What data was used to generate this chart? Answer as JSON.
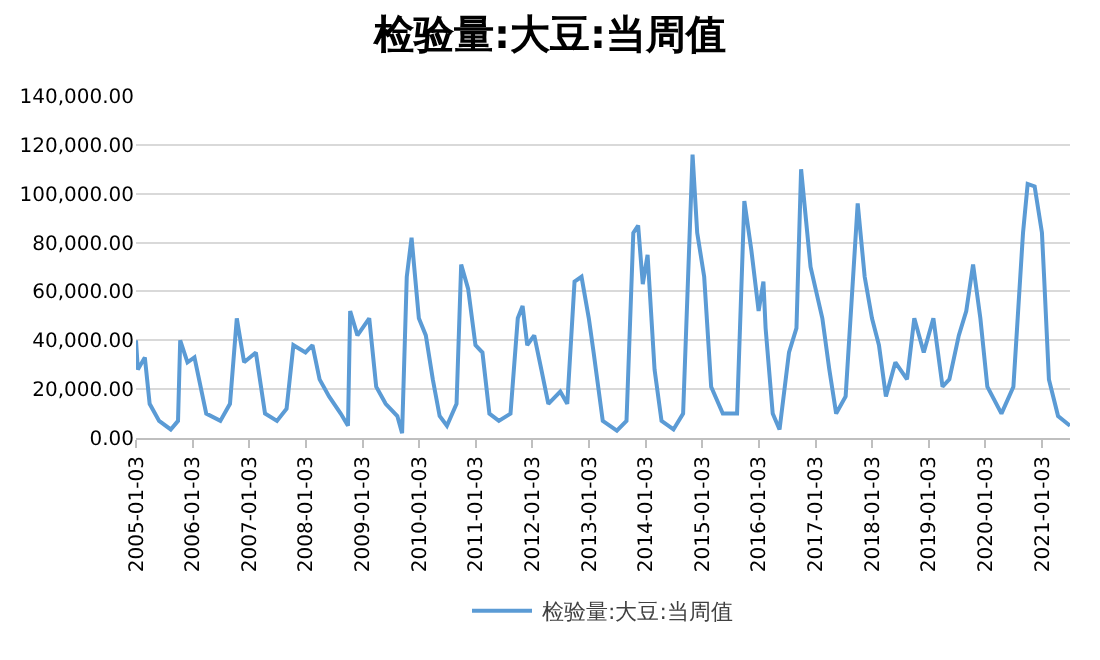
{
  "chart_data": {
    "type": "line",
    "title": "检验量:大豆:当周值",
    "x": [
      "2005-01-03",
      "2005-01-15",
      "2005-03-01",
      "2005-04-01",
      "2005-06-01",
      "2005-08-15",
      "2005-10-01",
      "2005-10-15",
      "2005-12-01",
      "2006-01-15",
      "2006-04-01",
      "2006-07-01",
      "2006-09-01",
      "2006-10-15",
      "2006-12-01",
      "2007-02-15",
      "2007-04-15",
      "2007-07-01",
      "2007-09-01",
      "2007-10-15",
      "2008-01-01",
      "2008-02-15",
      "2008-04-01",
      "2008-06-01",
      "2008-08-15",
      "2008-10-01",
      "2008-10-15",
      "2008-12-01",
      "2009-02-15",
      "2009-04-01",
      "2009-06-01",
      "2009-08-15",
      "2009-09-15",
      "2009-10-15",
      "2009-11-15",
      "2010-01-01",
      "2010-02-15",
      "2010-04-01",
      "2010-05-15",
      "2010-07-01",
      "2010-09-01",
      "2010-10-01",
      "2010-11-15",
      "2011-01-01",
      "2011-02-15",
      "2011-04-01",
      "2011-06-01",
      "2011-08-15",
      "2011-10-01",
      "2011-11-01",
      "2011-12-01",
      "2012-01-15",
      "2012-03-01",
      "2012-04-15",
      "2012-07-01",
      "2012-08-15",
      "2012-10-01",
      "2012-11-15",
      "2013-01-01",
      "2013-02-01",
      "2013-04-01",
      "2013-07-01",
      "2013-09-01",
      "2013-10-15",
      "2013-11-15",
      "2013-12-15",
      "2014-01-15",
      "2014-03-01",
      "2014-04-15",
      "2014-07-01",
      "2014-09-01",
      "2014-11-01",
      "2014-12-01",
      "2015-01-15",
      "2015-03-01",
      "2015-05-15",
      "2015-08-15",
      "2015-10-01",
      "2015-11-15",
      "2016-01-01",
      "2016-02-01",
      "2016-02-15",
      "2016-04-01",
      "2016-05-15",
      "2016-07-15",
      "2016-09-01",
      "2016-10-01",
      "2016-12-01",
      "2017-02-15",
      "2017-04-01",
      "2017-05-15",
      "2017-07-15",
      "2017-10-01",
      "2017-11-15",
      "2018-01-01",
      "2018-02-15",
      "2018-04-01",
      "2018-06-01",
      "2018-08-15",
      "2018-10-01",
      "2018-12-01",
      "2019-02-01",
      "2019-04-01",
      "2019-05-15",
      "2019-07-15",
      "2019-09-01",
      "2019-10-15",
      "2019-12-01",
      "2020-01-15",
      "2020-04-15",
      "2020-07-01",
      "2020-09-01",
      "2020-10-01",
      "2020-11-15",
      "2021-01-01",
      "2021-01-15",
      "2021-02-15",
      "2021-04-15",
      "2021-07-01"
    ],
    "series": [
      {
        "name": "检验量:大豆:当周值",
        "color": "#5b9bd5",
        "values": [
          40000,
          28000,
          33000,
          14000,
          7000,
          3500,
          7000,
          40000,
          31000,
          33000,
          10000,
          7000,
          14000,
          49000,
          31000,
          35000,
          10000,
          7000,
          12000,
          38000,
          35000,
          38000,
          24000,
          17000,
          10000,
          5000,
          52000,
          42000,
          49000,
          21000,
          14000,
          9000,
          2000,
          66000,
          82000,
          49000,
          42000,
          24000,
          9000,
          5000,
          14000,
          71000,
          61000,
          38000,
          35000,
          10000,
          7000,
          10000,
          49000,
          54000,
          38000,
          42000,
          28000,
          14000,
          19000,
          14000,
          64000,
          66000,
          49000,
          35000,
          7000,
          3000,
          7000,
          84000,
          87000,
          63000,
          75000,
          28000,
          7000,
          3500,
          10000,
          116000,
          84000,
          66000,
          21000,
          10000,
          10000,
          97000,
          77000,
          52000,
          64000,
          45000,
          10000,
          3500,
          35000,
          45000,
          110000,
          70000,
          49000,
          28000,
          10000,
          17000,
          96000,
          66000,
          49000,
          38000,
          17000,
          31000,
          24000,
          49000,
          35000,
          49000,
          21000,
          24000,
          42000,
          52000,
          71000,
          49000,
          21000,
          10000,
          21000,
          84000,
          104000,
          103000,
          84000,
          66000,
          24000,
          9000,
          5000
        ]
      }
    ],
    "xlim": [
      "2005-01-03",
      "2021-07-01"
    ],
    "xticks": [
      {
        "value": "2005-01-03",
        "label": "2005-01-03"
      },
      {
        "value": "2006-01-03",
        "label": "2006-01-03"
      },
      {
        "value": "2007-01-03",
        "label": "2007-01-03"
      },
      {
        "value": "2008-01-03",
        "label": "2008-01-03"
      },
      {
        "value": "2009-01-03",
        "label": "2009-01-03"
      },
      {
        "value": "2010-01-03",
        "label": "2010-01-03"
      },
      {
        "value": "2011-01-03",
        "label": "2011-01-03"
      },
      {
        "value": "2012-01-03",
        "label": "2012-01-03"
      },
      {
        "value": "2013-01-03",
        "label": "2013-01-03"
      },
      {
        "value": "2014-01-03",
        "label": "2014-01-03"
      },
      {
        "value": "2015-01-03",
        "label": "2015-01-03"
      },
      {
        "value": "2016-01-03",
        "label": "2016-01-03"
      },
      {
        "value": "2017-01-03",
        "label": "2017-01-03"
      },
      {
        "value": "2018-01-03",
        "label": "2018-01-03"
      },
      {
        "value": "2019-01-03",
        "label": "2019-01-03"
      },
      {
        "value": "2020-01-03",
        "label": "2020-01-03"
      },
      {
        "value": "2021-01-03",
        "label": "2021-01-03"
      }
    ],
    "ylim": [
      0,
      140000
    ],
    "yticks": [
      {
        "value": 0,
        "label": "0.00"
      },
      {
        "value": 20000,
        "label": "20,000.00"
      },
      {
        "value": 40000,
        "label": "40,000.00"
      },
      {
        "value": 60000,
        "label": "60,000.00"
      },
      {
        "value": 80000,
        "label": "80,000.00"
      },
      {
        "value": 100000,
        "label": "100,000.00"
      },
      {
        "value": 120000,
        "label": "120,000.00"
      },
      {
        "value": 140000,
        "label": "140,000.00"
      }
    ],
    "grid": "y",
    "legend": "bottom",
    "marker": "none",
    "line_style": "solid"
  }
}
